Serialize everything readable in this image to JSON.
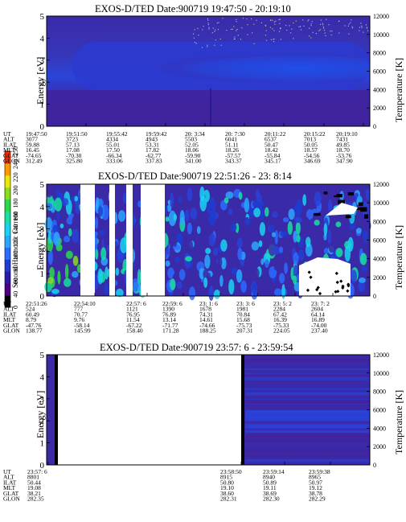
{
  "colorbar": {
    "title": "Second Harmonic Current",
    "ticks": [
      "0",
      "40",
      "60",
      "80",
      "100",
      "120",
      "140",
      "160",
      "180",
      "200",
      "220",
      "240",
      "250"
    ],
    "colors": [
      "#000000",
      "#4b0082",
      "#2a1aa6",
      "#1f3cd0",
      "#2b6bff",
      "#2aa8ff",
      "#19d3f0",
      "#18e0a0",
      "#2ad84a",
      "#8cdc1e",
      "#e8e80a",
      "#ff9a00",
      "#ff2b00"
    ]
  },
  "row_labels": [
    "UT",
    "ALT",
    "ILAT",
    "MLT",
    "GLAT",
    "GLON"
  ],
  "panels": [
    {
      "title": "EXOS-D/TED   Date:900719  19:47:50 - 20:19:10",
      "ylabel": "Energy [eV]",
      "y2label": "Temperature [K]",
      "yticks": [
        "0",
        "1",
        "2",
        "3",
        "4",
        "5"
      ],
      "y2ticks": [
        "0",
        "2000",
        "4000",
        "6000",
        "8000",
        "10000",
        "12000"
      ],
      "ephemeris": [
        [
          "19:47:50",
          "3077",
          "59.88",
          "16.45",
          "-74.65",
          "312.49"
        ],
        [
          "19:51:50",
          "3723",
          "57.13",
          "17.08",
          "-70.30",
          "325.80"
        ],
        [
          "19:55:42",
          "4334",
          "55.01",
          "17.50",
          "-66.34",
          "333.06"
        ],
        [
          "19:59:42",
          "4943",
          "53.31",
          "17.82",
          "-62.77",
          "337.83"
        ],
        [
          "20: 3:34",
          "5503",
          "52.05",
          "18.06",
          "-59.90",
          "341.00"
        ],
        [
          "20: 7:30",
          "6041",
          "51.11",
          "18.26",
          "-57.57",
          "343.37"
        ],
        [
          "20:11:22",
          "6537",
          "50.47",
          "18.42",
          "-55.84",
          "345.17"
        ],
        [
          "20:15:22",
          "7013",
          "50.05",
          "18.57",
          "-54.56",
          "346.69"
        ],
        [
          "20:19:10",
          "7431",
          "49.85",
          "18.70",
          "-53.76",
          "347.90"
        ]
      ]
    },
    {
      "title": "EXOS-D/TED   Date:900719  22:51:26 - 23: 8:14",
      "ylabel": "Energy [eV]",
      "y2label": "Temperature [K]",
      "yticks": [
        "0",
        "1",
        "2",
        "3",
        "4",
        "5"
      ],
      "y2ticks": [
        "0",
        "2000",
        "4000",
        "6000",
        "8000",
        "10000",
        "12000"
      ],
      "ephemeris": [
        [
          "22:51:26",
          "524",
          "60.49",
          "8.79",
          "-47.76",
          "138.77"
        ],
        [
          "22:54:10",
          "777",
          "70.77",
          "9.76",
          "-58.14",
          "145.99"
        ],
        [
          "22:57: 6",
          "1121",
          "76.95",
          "11.54",
          "-67.22",
          "158.40"
        ],
        [
          "22:59: 6",
          "1390",
          "76.89",
          "13.14",
          "-71.77",
          "171.28"
        ],
        [
          "23: 1: 6",
          "1678",
          "74.31",
          "14.61",
          "-74.66",
          "188.25"
        ],
        [
          "23: 3: 6",
          "1981",
          "70.84",
          "15.68",
          "-75.73",
          "207.31"
        ],
        [
          "23: 5: 2",
          "2284",
          "67.42",
          "16.39",
          "-75.33",
          "224.05"
        ],
        [
          "23: 7: 2",
          "2604",
          "64.14",
          "16.89",
          "-74.00",
          "237.40"
        ]
      ]
    },
    {
      "title": "EXOS-D/TED   Date:900719  23:57: 6 - 23:59:54",
      "ylabel": "Energy [eV]",
      "y2label": "Temperature [K]",
      "yticks": [
        "0",
        "1",
        "2",
        "3",
        "4",
        "5"
      ],
      "y2ticks": [
        "0",
        "2000",
        "4000",
        "6000",
        "8000",
        "10000",
        "12000"
      ],
      "ephemeris": [
        [
          "23:57: 6",
          "8801",
          "50.44",
          "19.08",
          "38.21",
          "282.35"
        ],
        [
          "23:58:50",
          "8915",
          "50.80",
          "19.10",
          "38.60",
          "282.31"
        ],
        [
          "23:59:14",
          "8940",
          "50.89",
          "19.11",
          "38.69",
          "282.30"
        ],
        [
          "23:59:38",
          "8965",
          "50.97",
          "19.12",
          "38.78",
          "282.29"
        ]
      ]
    }
  ],
  "chart_data": [
    {
      "type": "heatmap",
      "title": "EXOS-D/TED   Date:900719  19:47:50 - 20:19:10",
      "xlabel": "UT",
      "ylabel": "Energy [eV]",
      "y2label": "Temperature [K]",
      "ylim": [
        0,
        5
      ],
      "y2lim": [
        0,
        12000
      ],
      "x": [
        "19:47:50",
        "19:51:50",
        "19:55:42",
        "19:59:42",
        "20: 3:34",
        "20: 7:30",
        "20:11:22",
        "20:15:22",
        "20:19:10"
      ]
    },
    {
      "type": "heatmap",
      "title": "EXOS-D/TED   Date:900719  22:51:26 - 23: 8:14",
      "xlabel": "UT",
      "ylabel": "Energy [eV]",
      "y2label": "Temperature [K]",
      "ylim": [
        0,
        5
      ],
      "y2lim": [
        0,
        12000
      ],
      "x": [
        "22:51:26",
        "22:54:10",
        "22:57: 6",
        "22:59: 6",
        "23: 1: 6",
        "23: 3: 6",
        "23: 5: 2",
        "23: 7: 2"
      ]
    },
    {
      "type": "heatmap",
      "title": "EXOS-D/TED   Date:900719  23:57: 6 - 23:59:54",
      "xlabel": "UT",
      "ylabel": "Energy [eV]",
      "y2label": "Temperature [K]",
      "ylim": [
        0,
        5
      ],
      "y2lim": [
        0,
        12000
      ],
      "x": [
        "23:57: 6",
        "23:58:50",
        "23:59:14",
        "23:59:38"
      ]
    }
  ]
}
